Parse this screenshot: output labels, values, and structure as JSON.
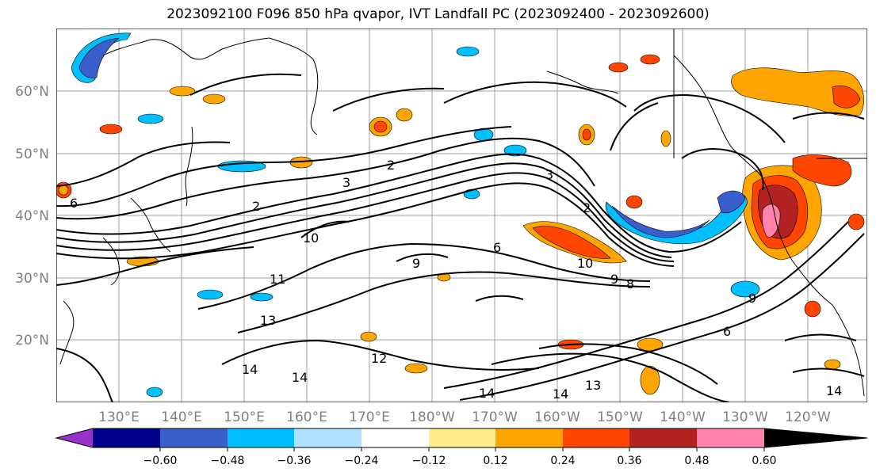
{
  "title": "2023092100 F096 850 hPa qvapor, IVT Landfall PC (2023092400 - 2023092600)",
  "map": {
    "lon_labels": [
      "130°E",
      "140°E",
      "150°E",
      "160°E",
      "170°E",
      "180°W",
      "170°W",
      "160°W",
      "150°W",
      "140°W",
      "130°W",
      "120°W"
    ],
    "lat_labels": [
      "60°N",
      "50°N",
      "40°N",
      "30°N",
      "20°N"
    ],
    "contour_labels": [
      "2",
      "3",
      "2",
      "6",
      "10",
      "11",
      "13",
      "14",
      "12",
      "9",
      "9",
      "8",
      "10",
      "14",
      "14",
      "13",
      "14",
      "14",
      "6",
      "9",
      "6",
      "2",
      "3"
    ],
    "grid": true
  },
  "colorbar": {
    "tick_labels": [
      "−0.60",
      "−0.48",
      "−0.36",
      "−0.24",
      "−0.12",
      "0.12",
      "0.24",
      "0.36",
      "0.48",
      "0.60"
    ],
    "colors": [
      "#9932cc",
      "#00008b",
      "#3a5fcd",
      "#00bfff",
      "#b0e2ff",
      "#ffffff",
      "#ffec8b",
      "#ffa500",
      "#ff4500",
      "#b22222",
      "#ff82ab"
    ],
    "extend": "both"
  }
}
